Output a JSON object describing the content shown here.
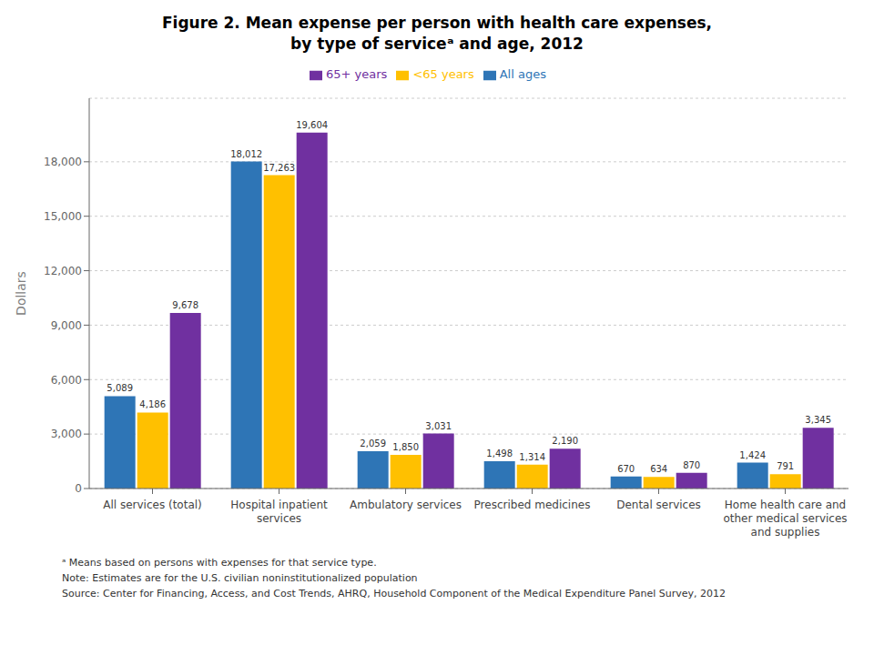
{
  "chart_data": {
    "type": "bar",
    "title": "Figure 2. Mean expense per person with health care expenses,\nby type of serviceᵃ and age, 2012",
    "categories": [
      "All services (total)",
      "Hospital inpatient\nservices",
      "Ambulatory services",
      "Prescribed medicines",
      "Dental services",
      "Home health care and\nother medical services\nand supplies"
    ],
    "series": [
      {
        "name": "All ages",
        "color": "#2E75B6",
        "values": [
          5089,
          18012,
          2059,
          1498,
          670,
          1424
        ],
        "value_labels": [
          "5,089",
          "18,012",
          "2,059",
          "1,498",
          "670",
          "1,424"
        ]
      },
      {
        "name": "<65 years",
        "color": "#FFC000",
        "values": [
          4186,
          17263,
          1850,
          1314,
          634,
          791
        ],
        "value_labels": [
          "4,186",
          "17,263",
          "1,850",
          "1,314",
          "634",
          "791"
        ]
      },
      {
        "name": "65+ years",
        "color": "#7030A0",
        "values": [
          9678,
          19604,
          3031,
          2190,
          870,
          3345
        ],
        "value_labels": [
          "9,678",
          "19,604",
          "3,031",
          "2,190",
          "870",
          "3,345"
        ]
      }
    ],
    "ylabel": "Dollars",
    "ylim": [
      0,
      21500
    ],
    "yticks": [
      0,
      {
        "value": 3000,
        "label": "3,000"
      },
      {
        "value": 6000,
        "label": "6,000"
      },
      {
        "value": 9000,
        "label": "9,000"
      },
      {
        "value": 12000,
        "label": "12,000"
      },
      {
        "value": 15000,
        "label": "15,000"
      },
      {
        "value": 18000,
        "label": "18,000"
      }
    ],
    "grid": true,
    "data_labels": true,
    "annotations": [
      "ᵃ Means based on persons with expenses for that service type.",
      "Note: Estimates are for the U.S. civilian noninstitutionalized population",
      "Source: Center for Financing, Access, and Cost Trends, AHRQ, Household Component of the Medical Expenditure Panel Survey,  2012"
    ]
  }
}
